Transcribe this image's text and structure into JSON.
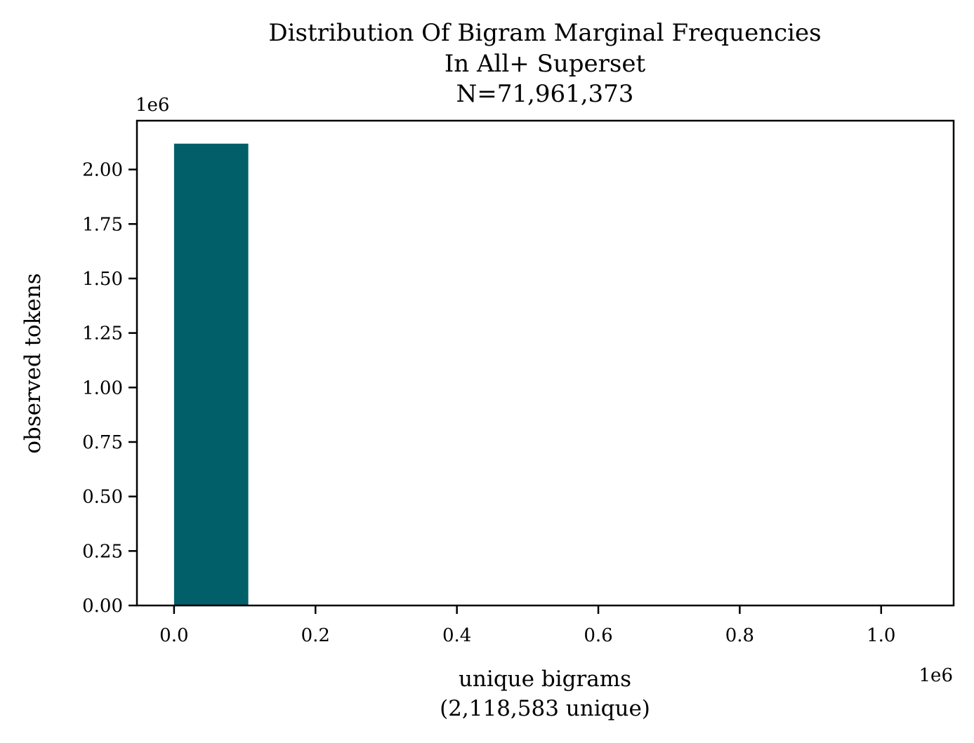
{
  "chart_data": {
    "type": "bar",
    "title_lines": [
      "Distribution Of Bigram Marginal Frequencies",
      "In All+ Superset",
      "N=71,961,373"
    ],
    "xlabel_lines": [
      "unique bigrams",
      "(2,118,583 unique)"
    ],
    "ylabel": "observed tokens",
    "x_offset_label": "1e6",
    "y_offset_label": "1e6",
    "xlim": [
      -0.0525,
      1.1025
    ],
    "ylim": [
      0,
      2.224
    ],
    "x_ticks": [
      0.0,
      0.2,
      0.4,
      0.6,
      0.8,
      1.0
    ],
    "x_tick_labels": [
      "0.0",
      "0.2",
      "0.4",
      "0.6",
      "0.8",
      "1.0"
    ],
    "y_ticks": [
      0.0,
      0.25,
      0.5,
      0.75,
      1.0,
      1.25,
      1.5,
      1.75,
      2.0
    ],
    "y_tick_labels": [
      "0.00",
      "0.25",
      "0.50",
      "0.75",
      "1.00",
      "1.25",
      "1.50",
      "1.75",
      "2.00"
    ],
    "bars": [
      {
        "x_start": 0.0,
        "x_end": 0.105,
        "value": 2.118583
      }
    ],
    "bar_color": "#005f69",
    "grid": false
  }
}
